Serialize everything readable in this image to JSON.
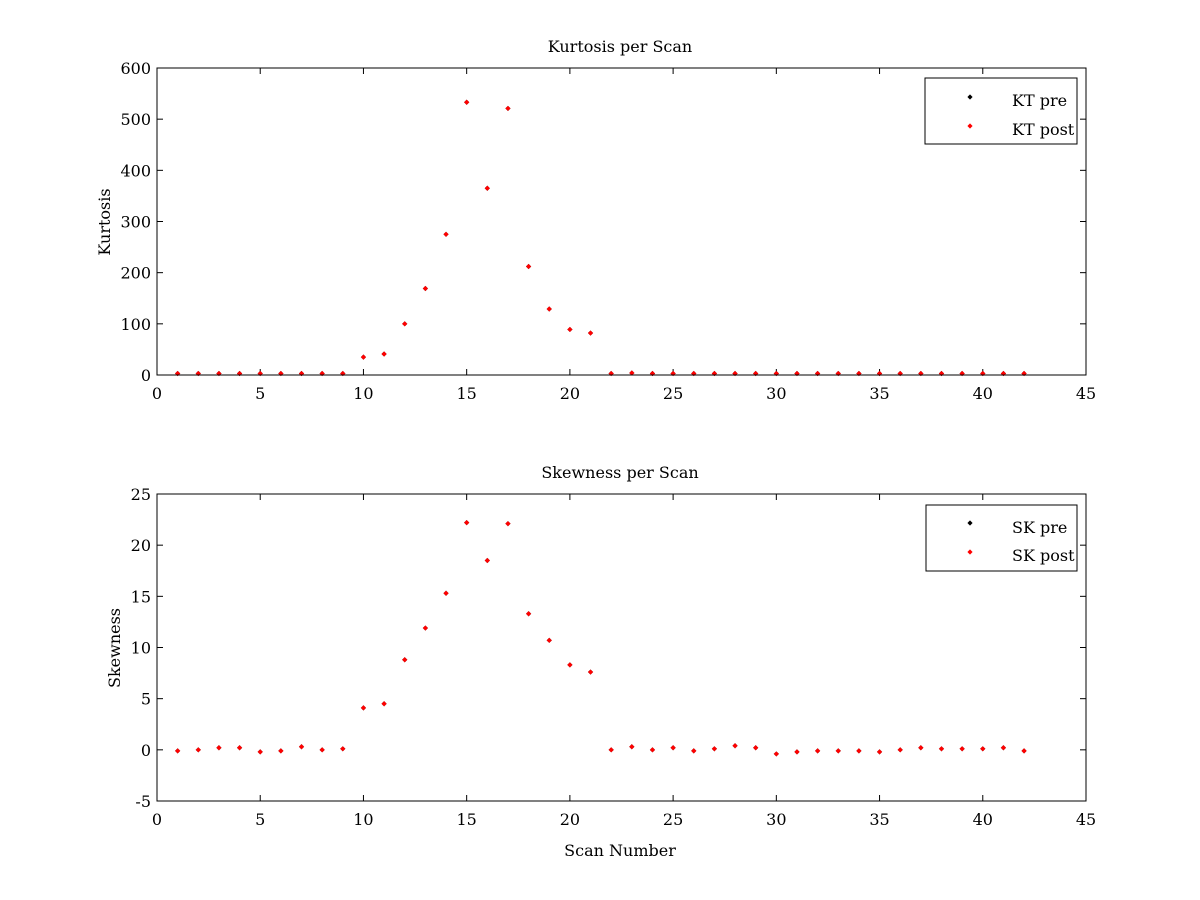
{
  "chart_data": [
    {
      "type": "scatter",
      "title": "Kurtosis per Scan",
      "xlabel": "",
      "ylabel": "Kurtosis",
      "xlim": [
        0,
        45
      ],
      "ylim": [
        0,
        600
      ],
      "xticks": [
        0,
        5,
        10,
        15,
        20,
        25,
        30,
        35,
        40,
        45
      ],
      "yticks": [
        0,
        100,
        200,
        300,
        400,
        500,
        600
      ],
      "grid": false,
      "legend_position": "top-right",
      "x": [
        1,
        2,
        3,
        4,
        5,
        6,
        7,
        8,
        9,
        10,
        11,
        12,
        13,
        14,
        15,
        16,
        17,
        18,
        19,
        20,
        21,
        22,
        23,
        24,
        25,
        26,
        27,
        28,
        29,
        30,
        31,
        32,
        33,
        34,
        35,
        36,
        37,
        38,
        39,
        40,
        41,
        42
      ],
      "series": [
        {
          "name": "KT pre",
          "color": "#000000",
          "values": [
            3,
            3,
            3,
            3,
            3,
            3,
            3,
            3,
            3,
            35,
            41,
            100,
            169,
            275,
            533,
            365,
            521,
            212,
            129,
            89,
            82,
            3,
            4,
            3,
            3,
            3,
            3,
            3,
            3,
            3,
            3,
            3,
            3,
            3,
            3,
            3,
            3,
            3,
            3,
            3,
            3,
            3
          ]
        },
        {
          "name": "KT post",
          "color": "#ff0000",
          "values": [
            3,
            3,
            3,
            3,
            3,
            3,
            3,
            3,
            3,
            35,
            41,
            100,
            169,
            275,
            533,
            365,
            521,
            212,
            129,
            89,
            82,
            3,
            4,
            3,
            3,
            3,
            3,
            3,
            3,
            3,
            3,
            3,
            3,
            3,
            3,
            3,
            3,
            3,
            3,
            3,
            3,
            3
          ]
        }
      ]
    },
    {
      "type": "scatter",
      "title": "Skewness per Scan",
      "xlabel": "Scan Number",
      "ylabel": "Skewness",
      "xlim": [
        0,
        45
      ],
      "ylim": [
        -5,
        25
      ],
      "xticks": [
        0,
        5,
        10,
        15,
        20,
        25,
        30,
        35,
        40,
        45
      ],
      "yticks": [
        -5,
        0,
        5,
        10,
        15,
        20,
        25
      ],
      "grid": false,
      "legend_position": "top-right",
      "x": [
        1,
        2,
        3,
        4,
        5,
        6,
        7,
        8,
        9,
        10,
        11,
        12,
        13,
        14,
        15,
        16,
        17,
        18,
        19,
        20,
        21,
        22,
        23,
        24,
        25,
        26,
        27,
        28,
        29,
        30,
        31,
        32,
        33,
        34,
        35,
        36,
        37,
        38,
        39,
        40,
        41,
        42
      ],
      "series": [
        {
          "name": "SK pre",
          "color": "#000000",
          "values": [
            -0.1,
            0,
            0.2,
            0.2,
            -0.2,
            -0.1,
            0.3,
            0,
            0.1,
            4.1,
            4.5,
            8.8,
            11.9,
            15.3,
            22.2,
            18.5,
            22.1,
            13.3,
            10.7,
            8.3,
            7.6,
            0,
            0.3,
            0,
            0.2,
            -0.1,
            0.1,
            0.4,
            0.2,
            -0.4,
            -0.2,
            -0.1,
            -0.1,
            -0.1,
            -0.2,
            0,
            0.2,
            0.1,
            0.1,
            0.1,
            0.2,
            -0.1
          ]
        },
        {
          "name": "SK post",
          "color": "#ff0000",
          "values": [
            -0.1,
            0,
            0.2,
            0.2,
            -0.2,
            -0.1,
            0.3,
            0,
            0.1,
            4.1,
            4.5,
            8.8,
            11.9,
            15.3,
            22.2,
            18.5,
            22.1,
            13.3,
            10.7,
            8.3,
            7.6,
            0,
            0.3,
            0,
            0.2,
            -0.1,
            0.1,
            0.4,
            0.2,
            -0.4,
            -0.2,
            -0.1,
            -0.1,
            -0.1,
            -0.2,
            0,
            0.2,
            0.1,
            0.1,
            0.1,
            0.2,
            -0.1
          ]
        }
      ]
    }
  ]
}
